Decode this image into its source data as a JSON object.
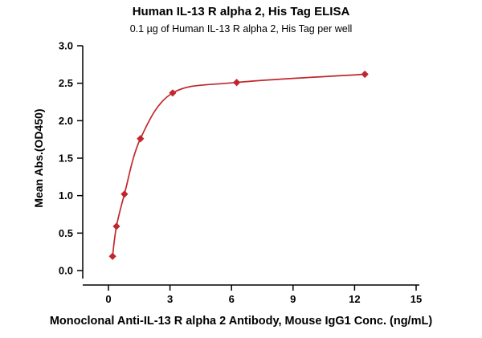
{
  "chart_data": {
    "type": "scatter",
    "title": "Human IL-13 R alpha 2, His Tag ELISA",
    "subtitle": "0.1 µg of Human IL-13 R alpha 2, His Tag per well",
    "xlabel": "Monoclonal Anti-IL-13 R alpha 2 Antibody, Mouse IgG1 Conc. (ng/mL)",
    "ylabel": "Mean Abs.(OD450)",
    "x": [
      0.2,
      0.39,
      0.78,
      1.56,
      3.13,
      6.25,
      12.5
    ],
    "y": [
      0.19,
      0.59,
      1.02,
      1.76,
      2.37,
      2.51,
      2.62
    ],
    "xlim": [
      0,
      15
    ],
    "ylim": [
      0,
      3.0
    ],
    "x_ticks": [
      0,
      3,
      6,
      9,
      12,
      15
    ],
    "y_ticks": [
      0.0,
      0.5,
      1.0,
      1.5,
      2.0,
      2.5,
      3.0
    ],
    "grid": false,
    "legend": false,
    "marker": "diamond",
    "marker_color": "#c0272d",
    "line_color": "#c0272d",
    "axis_color": "#000000",
    "line_style": "smooth-fit-curve"
  }
}
